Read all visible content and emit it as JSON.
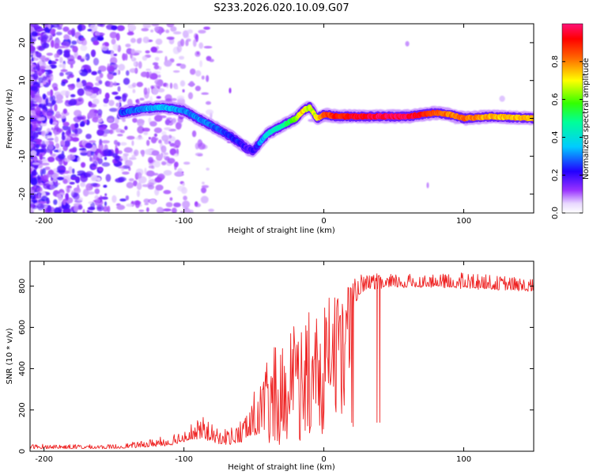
{
  "title": "S233.2026.020.10.09.G07",
  "chart_data": [
    {
      "type": "heatmap",
      "xlabel": "Height of straight line (km)",
      "ylabel": "Frequency (Hz)",
      "xlim": [
        -210,
        150
      ],
      "ylim": [
        -25,
        25
      ],
      "x_ticks": [
        -200,
        -100,
        0,
        100
      ],
      "x_tick_labels": [
        "-200",
        "-100",
        "0",
        "100"
      ],
      "y_ticks": [
        -20,
        -10,
        0,
        10,
        20
      ],
      "y_tick_labels": [
        "-20",
        "-10",
        "0",
        "10",
        "20"
      ],
      "colorbar": {
        "label": "Normalized spectral amplitude",
        "range": [
          0,
          1
        ],
        "ticks": [
          0,
          0.2,
          0.4,
          0.6,
          0.8
        ],
        "tick_labels": [
          "0.0",
          "0.2",
          "0.4",
          "0.6",
          "0.8"
        ]
      },
      "ridge": {
        "description": "Doppler ridge: frequency vs height with peak amplitude",
        "x": [
          -145,
          -130,
          -115,
          -100,
          -90,
          -80,
          -70,
          -60,
          -55,
          -50,
          -45,
          -40,
          -30,
          -20,
          -15,
          -10,
          -5,
          0,
          10,
          20,
          40,
          60,
          80,
          90,
          100,
          120,
          150
        ],
        "freq": [
          1.5,
          2.5,
          3,
          2,
          0,
          -2,
          -4,
          -6.5,
          -8,
          -8.5,
          -6,
          -4,
          -2,
          0,
          2,
          3,
          0,
          1,
          0.5,
          0.5,
          0.5,
          0.5,
          1.5,
          1,
          0,
          0.5,
          0
        ],
        "amplitude": [
          0.25,
          0.3,
          0.35,
          0.3,
          0.3,
          0.28,
          0.25,
          0.22,
          0.18,
          0.2,
          0.3,
          0.4,
          0.45,
          0.6,
          0.75,
          0.65,
          0.7,
          0.85,
          0.9,
          0.92,
          0.97,
          0.97,
          0.85,
          0.8,
          0.82,
          0.75,
          0.75
        ]
      },
      "noise_region_x": [
        -210,
        -140
      ]
    },
    {
      "type": "line",
      "xlabel": "Height of straight line (km)",
      "ylabel": "SNR (10 * v/v)",
      "xlim": [
        -210,
        150
      ],
      "ylim": [
        0,
        920
      ],
      "x_ticks": [
        -200,
        -100,
        0,
        100
      ],
      "x_tick_labels": [
        "-200",
        "-100",
        "0",
        "100"
      ],
      "y_ticks": [
        0,
        200,
        400,
        600,
        800
      ],
      "y_tick_labels": [
        "0",
        "200",
        "400",
        "600",
        "800"
      ],
      "color": "#ee2222",
      "envelope": {
        "x": [
          -210,
          -150,
          -130,
          -110,
          -95,
          -85,
          -75,
          -60,
          -50,
          -40,
          -30,
          -20,
          -10,
          0,
          10,
          20,
          25,
          30,
          50,
          80,
          100,
          120,
          150
        ],
        "baseline": [
          15,
          15,
          22,
          35,
          60,
          70,
          40,
          50,
          90,
          140,
          220,
          320,
          420,
          480,
          560,
          680,
          760,
          790,
          800,
          800,
          795,
          790,
          780
        ],
        "upper": [
          35,
          35,
          50,
          90,
          140,
          170,
          110,
          150,
          300,
          450,
          570,
          620,
          680,
          720,
          780,
          820,
          860,
          860,
          860,
          860,
          870,
          860,
          840
        ]
      },
      "dropouts": [
        {
          "x": 21,
          "y": 120
        },
        {
          "x": 38,
          "y": 140
        },
        {
          "x": 40,
          "y": 140
        }
      ]
    }
  ]
}
